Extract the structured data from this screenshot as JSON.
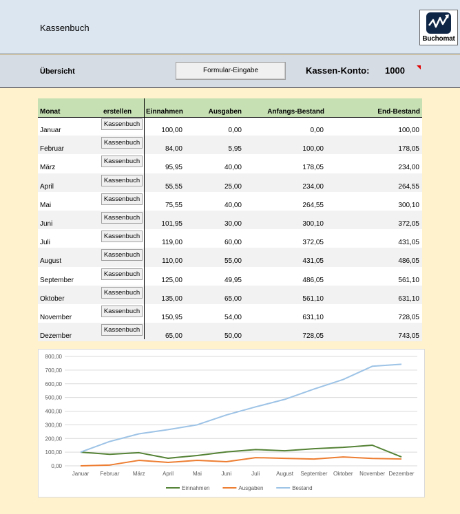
{
  "header": {
    "title": "Kassenbuch",
    "logo_text": "Buchomat"
  },
  "toolbar": {
    "section_title": "Übersicht",
    "form_button_label": "Formular-Eingabe",
    "konto_label": "Kassen-Konto:",
    "konto_value": "1000"
  },
  "table": {
    "headers": [
      "Monat",
      "erstellen",
      "Einnahmen",
      "Ausgaben",
      "Anfangs-Bestand",
      "End-Bestand"
    ],
    "create_button_label": "Kassenbuch",
    "rows": [
      {
        "monat": "Januar",
        "einnahmen": "100,00",
        "ausgaben": "0,00",
        "anfang": "0,00",
        "ende": "100,00"
      },
      {
        "monat": "Februar",
        "einnahmen": "84,00",
        "ausgaben": "5,95",
        "anfang": "100,00",
        "ende": "178,05"
      },
      {
        "monat": "März",
        "einnahmen": "95,95",
        "ausgaben": "40,00",
        "anfang": "178,05",
        "ende": "234,00"
      },
      {
        "monat": "April",
        "einnahmen": "55,55",
        "ausgaben": "25,00",
        "anfang": "234,00",
        "ende": "264,55"
      },
      {
        "monat": "Mai",
        "einnahmen": "75,55",
        "ausgaben": "40,00",
        "anfang": "264,55",
        "ende": "300,10"
      },
      {
        "monat": "Juni",
        "einnahmen": "101,95",
        "ausgaben": "30,00",
        "anfang": "300,10",
        "ende": "372,05"
      },
      {
        "monat": "Juli",
        "einnahmen": "119,00",
        "ausgaben": "60,00",
        "anfang": "372,05",
        "ende": "431,05"
      },
      {
        "monat": "August",
        "einnahmen": "110,00",
        "ausgaben": "55,00",
        "anfang": "431,05",
        "ende": "486,05"
      },
      {
        "monat": "September",
        "einnahmen": "125,00",
        "ausgaben": "49,95",
        "anfang": "486,05",
        "ende": "561,10"
      },
      {
        "monat": "Oktober",
        "einnahmen": "135,00",
        "ausgaben": "65,00",
        "anfang": "561,10",
        "ende": "631,10"
      },
      {
        "monat": "November",
        "einnahmen": "150,95",
        "ausgaben": "54,00",
        "anfang": "631,10",
        "ende": "728,05"
      },
      {
        "monat": "Dezember",
        "einnahmen": "65,00",
        "ausgaben": "50,00",
        "anfang": "728,05",
        "ende": "743,05"
      }
    ]
  },
  "chart_data": {
    "type": "line",
    "categories": [
      "Januar",
      "Februar",
      "März",
      "April",
      "Mai",
      "Juni",
      "Juli",
      "August",
      "September",
      "Oktober",
      "November",
      "Dezember"
    ],
    "series": [
      {
        "name": "Einnahmen",
        "color": "#548235",
        "values": [
          100.0,
          84.0,
          95.95,
          55.55,
          75.55,
          101.95,
          119.0,
          110.0,
          125.0,
          135.0,
          150.95,
          65.0
        ]
      },
      {
        "name": "Ausgaben",
        "color": "#ed7d31",
        "values": [
          0.0,
          5.95,
          40.0,
          25.0,
          40.0,
          30.0,
          60.0,
          55.0,
          49.95,
          65.0,
          54.0,
          50.0
        ]
      },
      {
        "name": "Bestand",
        "color": "#9dc3e6",
        "values": [
          100.0,
          178.05,
          234.0,
          264.55,
          300.1,
          372.05,
          431.05,
          486.05,
          561.1,
          631.1,
          728.05,
          743.05
        ]
      }
    ],
    "yticks": [
      "0,00",
      "100,00",
      "200,00",
      "300,00",
      "400,00",
      "500,00",
      "600,00",
      "700,00",
      "800,00"
    ],
    "ylim": [
      0,
      800
    ],
    "grid": true,
    "legend": "bottom"
  }
}
